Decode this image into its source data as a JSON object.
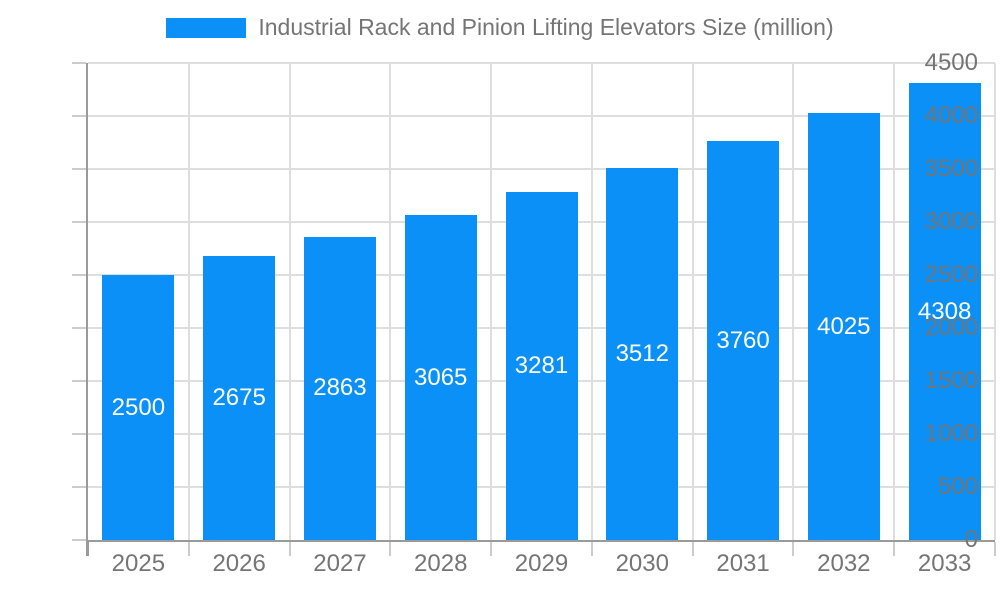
{
  "chart_data": {
    "type": "bar",
    "title": "Industrial Rack and Pinion Lifting Elevators Size (million)",
    "series_label": "Industrial Rack and Pinion Lifting Elevators Size (million)",
    "categories": [
      "2025",
      "2026",
      "2027",
      "2028",
      "2029",
      "2030",
      "2031",
      "2032",
      "2033"
    ],
    "values": [
      2500,
      2675,
      2863,
      3065,
      3281,
      3512,
      3760,
      4025,
      4308
    ],
    "xlabel": "",
    "ylabel": "",
    "ylim": [
      0,
      4500
    ],
    "ytick_step": 500,
    "grid": true,
    "legend_position": "top",
    "bar_color": "#0a90f7",
    "value_label_color": "#ffffff",
    "axis_text_color": "#757575",
    "grid_color": "#dedede",
    "axis_line_color": "#9a9a9a",
    "tick_color": "#cccccc"
  }
}
